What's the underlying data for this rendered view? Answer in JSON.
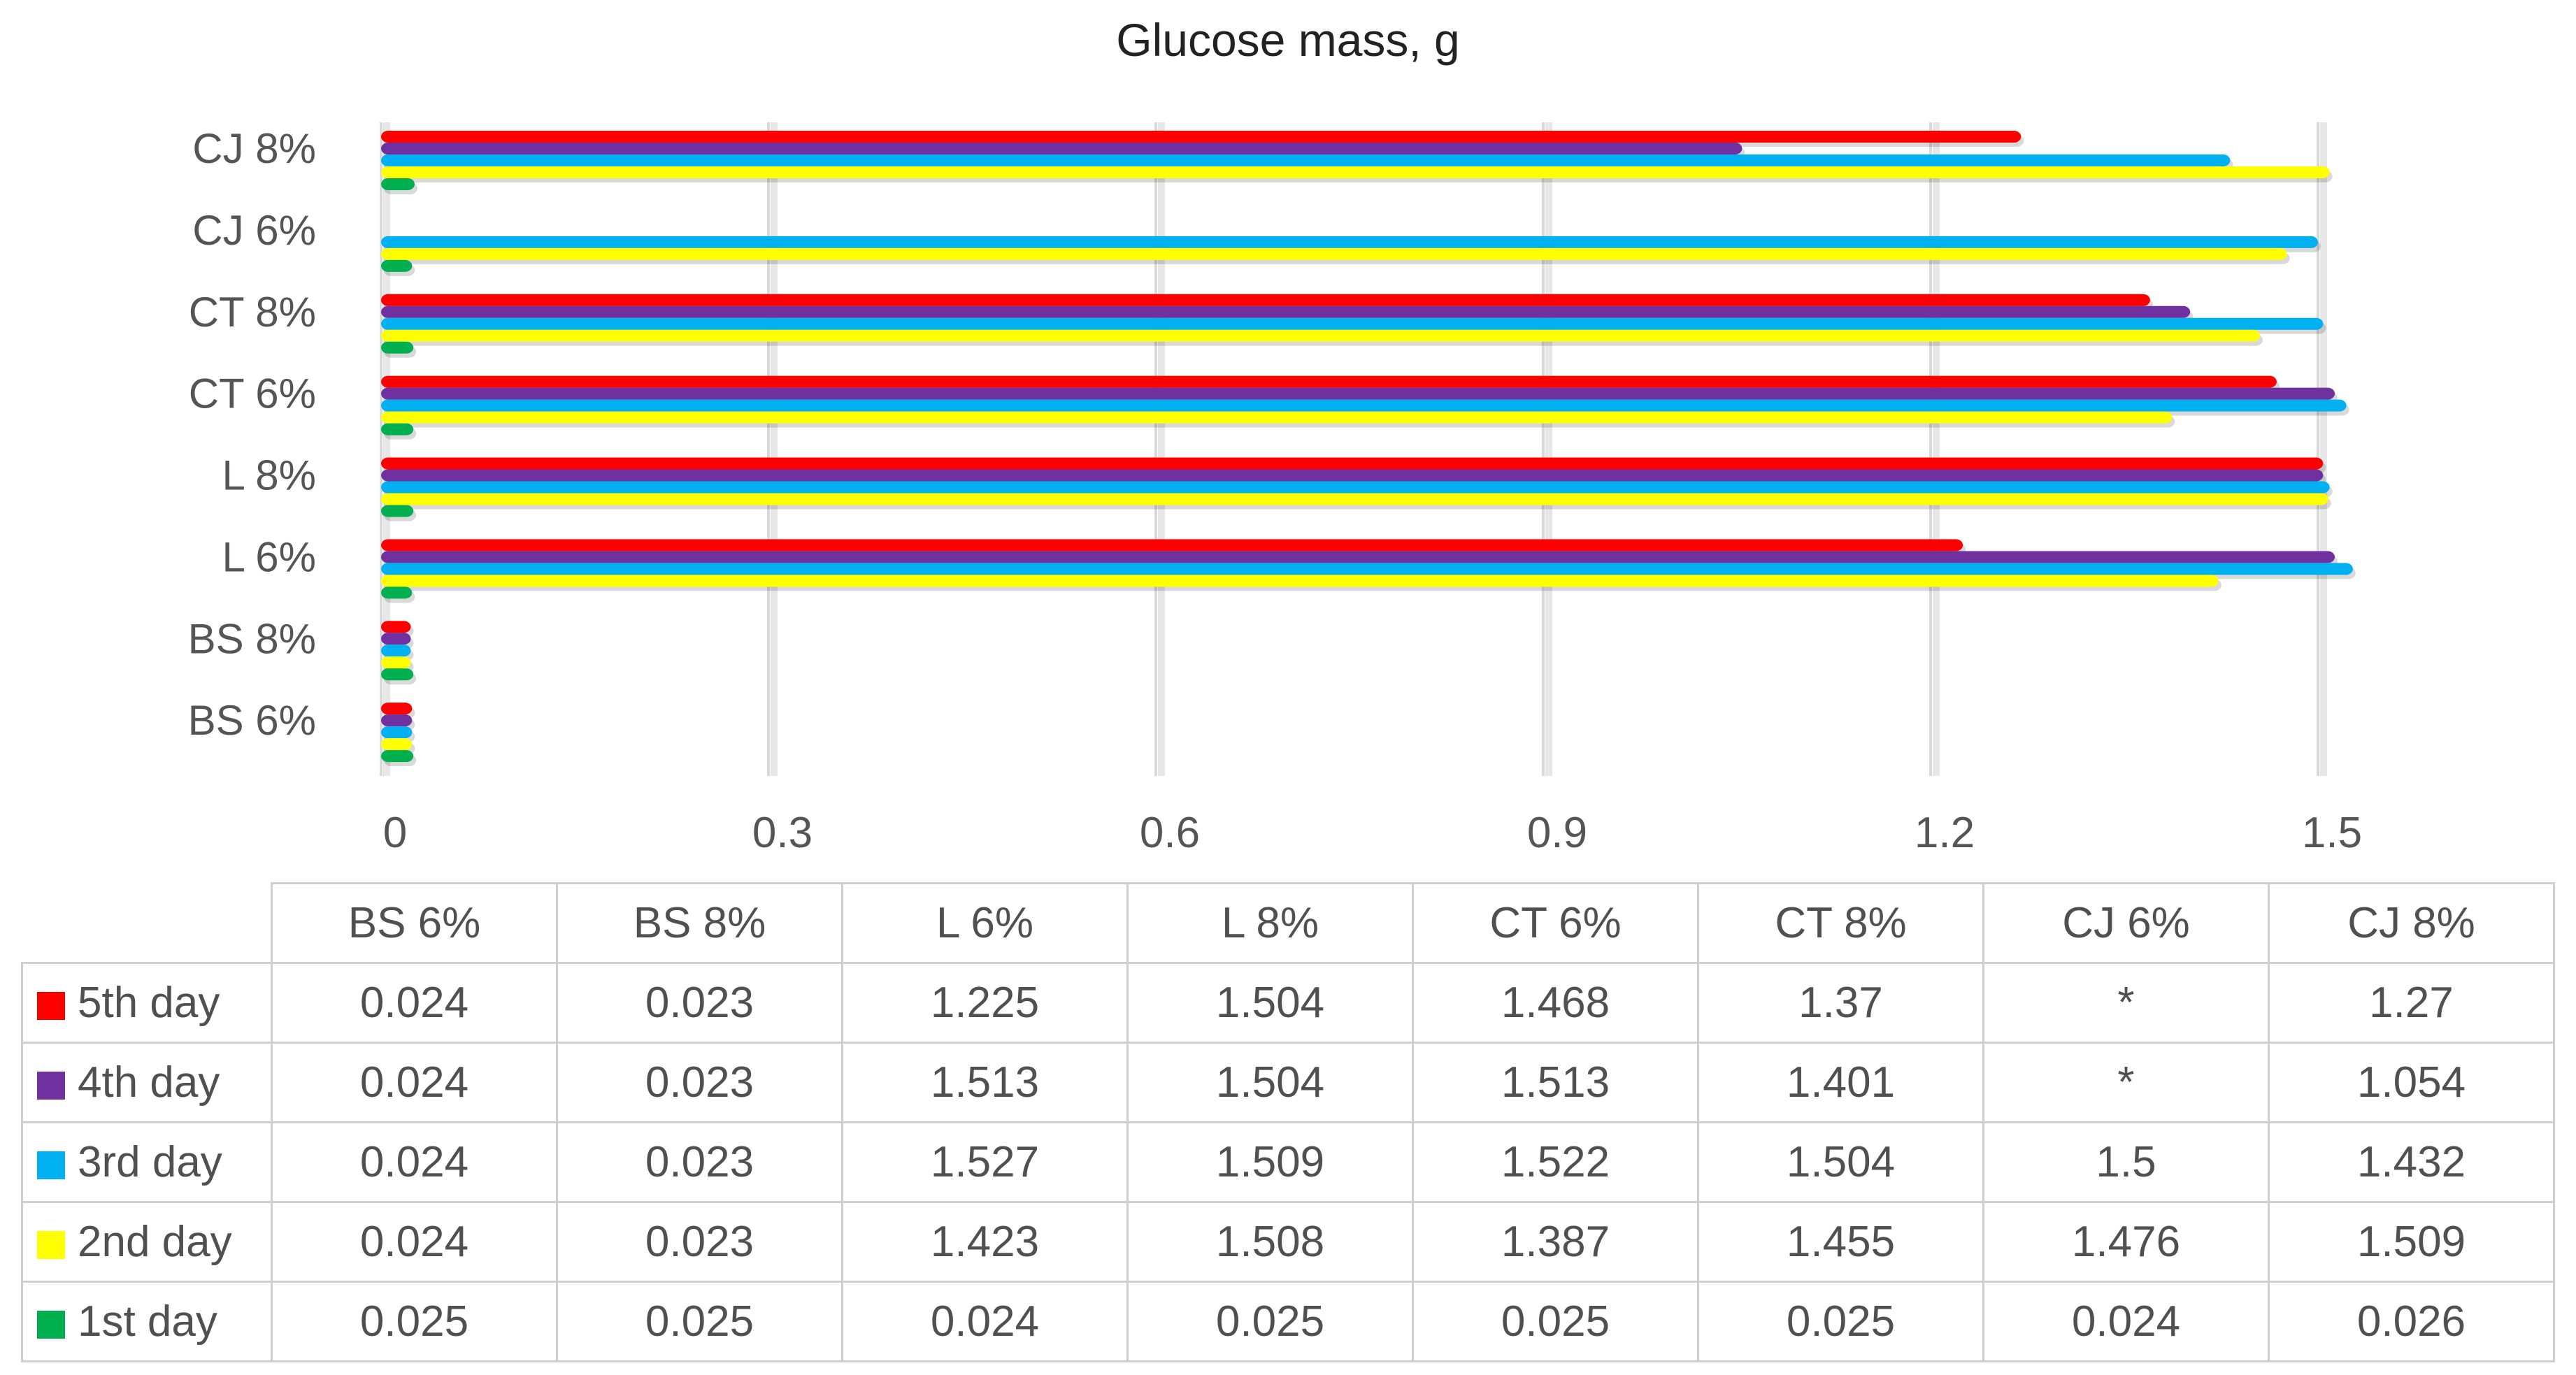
{
  "chart_data": {
    "type": "bar",
    "orientation": "horizontal",
    "title": "Glucose mass, g",
    "categories": [
      "BS 6%",
      "BS 8%",
      "L 6%",
      "L 8%",
      "CT 6%",
      "CT 8%",
      "CJ 6%",
      "CJ 8%"
    ],
    "series": [
      {
        "name": "5th day",
        "color": "#ff0000",
        "values": [
          0.024,
          0.023,
          1.225,
          1.504,
          1.468,
          1.37,
          null,
          1.27
        ],
        "labels": [
          "0.024",
          "0.023",
          "1.225",
          "1.504",
          "1.468",
          "1.37",
          "*",
          "1.27"
        ]
      },
      {
        "name": "4th day",
        "color": "#7030a0",
        "values": [
          0.024,
          0.023,
          1.513,
          1.504,
          1.513,
          1.401,
          null,
          1.054
        ],
        "labels": [
          "0.024",
          "0.023",
          "1.513",
          "1.504",
          "1.513",
          "1.401",
          "*",
          "1.054"
        ]
      },
      {
        "name": "3rd day",
        "color": "#00b0f0",
        "values": [
          0.024,
          0.023,
          1.527,
          1.509,
          1.522,
          1.504,
          1.5,
          1.432
        ],
        "labels": [
          "0.024",
          "0.023",
          "1.527",
          "1.509",
          "1.522",
          "1.504",
          "1.5",
          "1.432"
        ]
      },
      {
        "name": "2nd day",
        "color": "#ffff00",
        "values": [
          0.024,
          0.023,
          1.423,
          1.508,
          1.387,
          1.455,
          1.476,
          1.509
        ],
        "labels": [
          "0.024",
          "0.023",
          "1.423",
          "1.508",
          "1.387",
          "1.455",
          "1.476",
          "1.509"
        ]
      },
      {
        "name": "1st day",
        "color": "#00b050",
        "values": [
          0.025,
          0.025,
          0.024,
          0.025,
          0.025,
          0.025,
          0.024,
          0.026
        ],
        "labels": [
          "0.025",
          "0.025",
          "0.024",
          "0.025",
          "0.025",
          "0.025",
          "0.024",
          "0.026"
        ]
      }
    ],
    "x_ticks": [
      "0",
      "0.3",
      "0.6",
      "0.9",
      "1.2",
      "1.5"
    ],
    "xlim": [
      0,
      1.5
    ],
    "grid": true,
    "legend": "data-table-below"
  }
}
